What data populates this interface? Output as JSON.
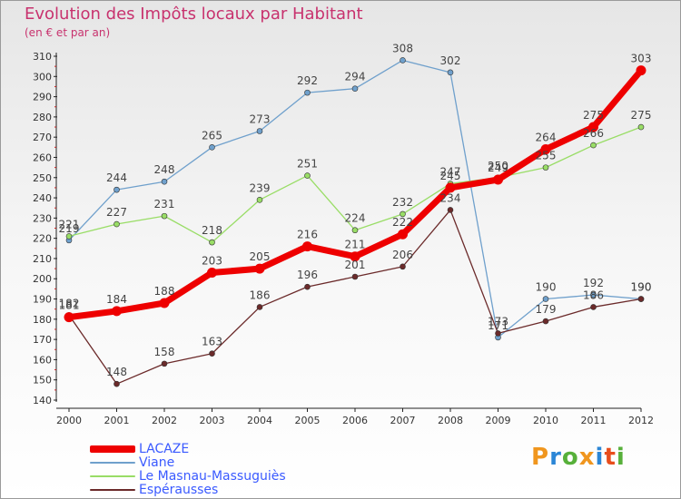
{
  "header": {
    "title": "Evolution des Impôts locaux par Habitant",
    "subtitle": "(en € et par an)"
  },
  "colors": {
    "lacaze": "#ee0000",
    "viane": "#6fa0cc",
    "masnau": "#99dd66",
    "esperausses": "#6b2a2a",
    "title": "#c8326e",
    "legend_text": "#3a5aff"
  },
  "logo": {
    "letters": [
      "P",
      "r",
      "o",
      "x",
      "i",
      "t",
      "i"
    ],
    "colors": [
      "#f0961e",
      "#2b86d6",
      "#57b03a",
      "#f0961e",
      "#2b86d6",
      "#e84d1c",
      "#57b03a"
    ]
  },
  "chart_data": {
    "type": "line",
    "x": [
      "2000",
      "2001",
      "2002",
      "2003",
      "2004",
      "2005",
      "2006",
      "2007",
      "2008",
      "2009",
      "2010",
      "2011",
      "2012"
    ],
    "ylim": [
      140,
      310
    ],
    "yticks": [
      140,
      150,
      160,
      170,
      180,
      190,
      200,
      210,
      220,
      230,
      240,
      250,
      260,
      270,
      280,
      290,
      300,
      310
    ],
    "grid": false,
    "legend_position": "bottom-left",
    "series": [
      {
        "name": "Viane",
        "color": "#6fa0cc",
        "values": [
          219,
          244,
          248,
          265,
          273,
          292,
          294,
          308,
          302,
          171,
          190,
          192,
          190
        ]
      },
      {
        "name": "Le Masnau-Massuguiès",
        "color": "#99dd66",
        "values": [
          221,
          227,
          231,
          218,
          239,
          251,
          224,
          232,
          247,
          250,
          255,
          266,
          275
        ]
      },
      {
        "name": "Espérausses",
        "color": "#6b2a2a",
        "values": [
          182,
          148,
          158,
          163,
          186,
          196,
          201,
          206,
          234,
          173,
          179,
          186,
          190
        ]
      },
      {
        "name": "LACAZE",
        "color": "#ee0000",
        "values": [
          181,
          184,
          188,
          203,
          205,
          216,
          211,
          222,
          245,
          249,
          264,
          275,
          303
        ]
      }
    ],
    "legend": [
      "LACAZE",
      "Viane",
      "Le Masnau-Massuguiès",
      "Espérausses"
    ]
  }
}
